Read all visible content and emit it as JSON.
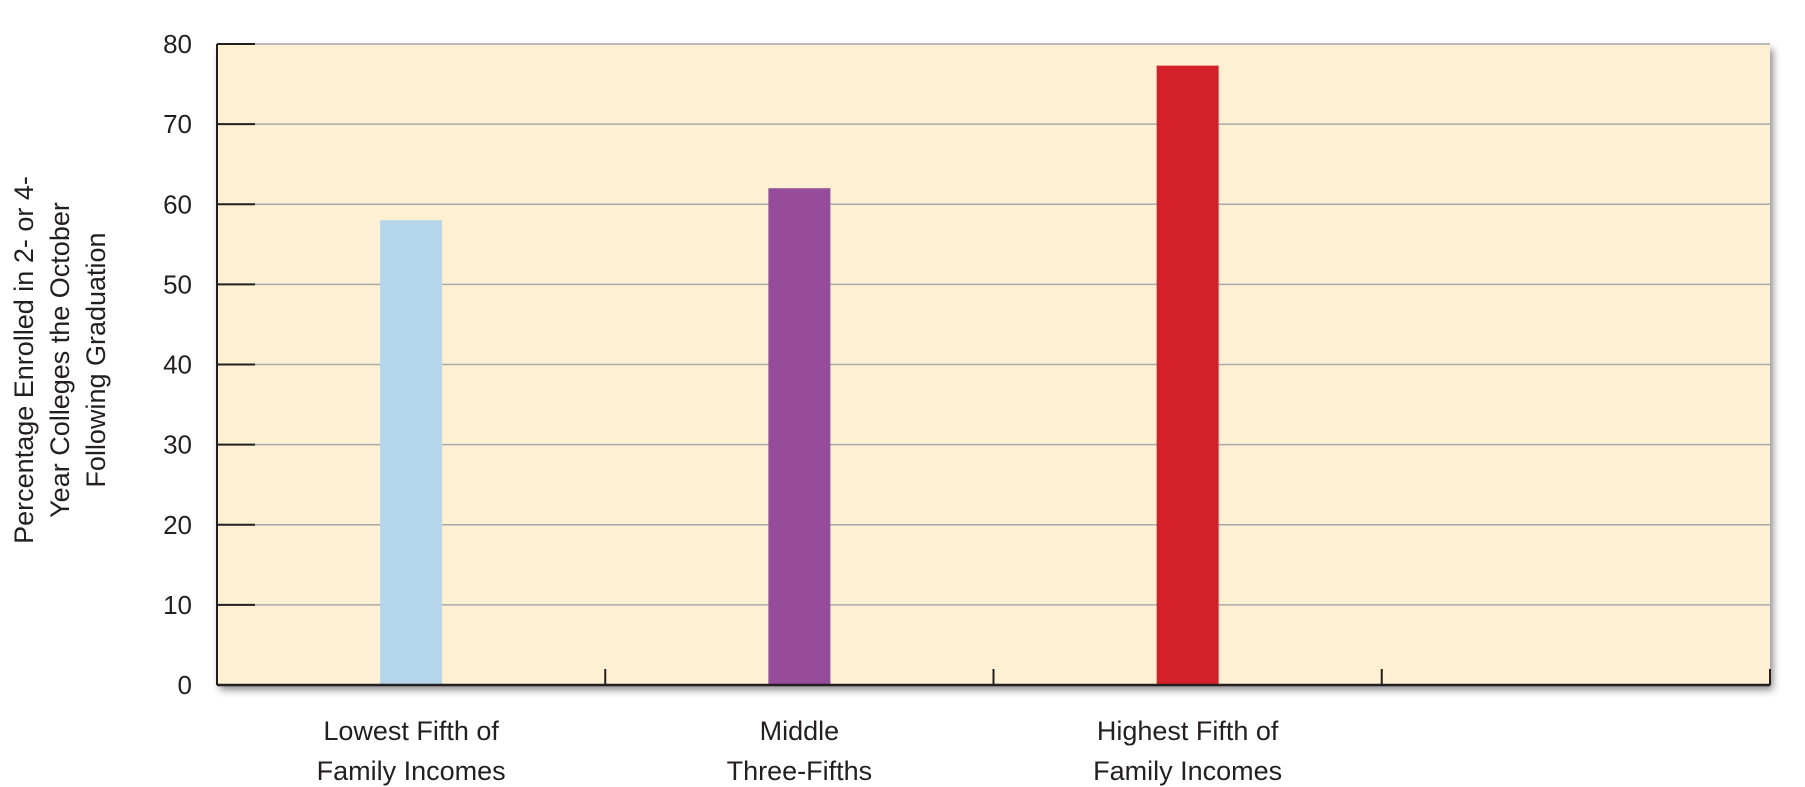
{
  "chart_data": {
    "type": "bar",
    "categories": [
      [
        "Lowest Fifth of",
        "Family Incomes"
      ],
      [
        "Middle",
        "Three-Fifths"
      ],
      [
        "Highest Fifth of",
        "Family Incomes"
      ]
    ],
    "values": [
      58,
      62,
      77.3
    ],
    "bar_colors": [
      "#b5d5ea",
      "#974c9b",
      "#d42029"
    ],
    "ylabel": [
      "Percentage Enrolled in 2- or 4-",
      "Year Colleges the October",
      "Following Graduation"
    ],
    "ylim": [
      0,
      80
    ],
    "yticks": [
      0,
      10,
      20,
      30,
      40,
      50,
      60,
      70,
      80
    ],
    "category_slots": 4,
    "plot_background": "#fdf0d3",
    "grid_color": "#a7a9ac",
    "grid": true
  }
}
